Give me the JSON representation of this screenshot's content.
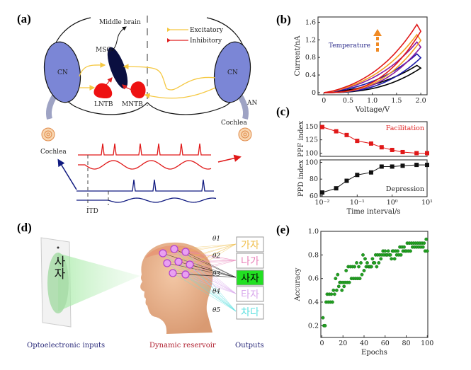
{
  "panels": {
    "a": {
      "label": "(a)",
      "middle_brain": "Middle brain",
      "legend": [
        {
          "label": "Excitatory",
          "color": "#f5c842"
        },
        {
          "label": "Inhibitory",
          "color": "#e02020"
        }
      ],
      "mso": "MSO",
      "cn_left": "CN",
      "cn_right": "CN",
      "lntb": "LNTB",
      "mntb": "MNTB",
      "an": "AN",
      "cochlea_left": "Cochlea",
      "cochlea_right": "Cochlea",
      "itd": "ITD",
      "colors": {
        "cn": "#7b86d6",
        "mso": "#0a0f40",
        "ntb": "#ee1111",
        "an": "#9ea3c4",
        "red_trace": "#e01818",
        "blue_trace": "#101a80"
      }
    },
    "b": {
      "label": "(b)",
      "annotation": "Temperature",
      "annotation_color": "#2a2a8a",
      "arrow_color": "#f08a24"
    },
    "c": {
      "label": "(c)"
    },
    "d": {
      "label": "(d)",
      "input_char": "사자",
      "thetas": [
        "θ1",
        "θ2",
        "θ3",
        "θ4",
        "θ5"
      ],
      "outputs": [
        {
          "text": "가자",
          "color": "#f0c050",
          "bg": "#ffffff"
        },
        {
          "text": "나가",
          "color": "#e880b8",
          "bg": "#ffffff"
        },
        {
          "text": "사자",
          "color": "#000000",
          "bg": "#22e022"
        },
        {
          "text": "타자",
          "color": "#d8a8ec",
          "bg": "#ffffff"
        },
        {
          "text": "차다",
          "color": "#60e0e0",
          "bg": "#ffffff"
        }
      ],
      "caption_inputs": "Optoelectronic inputs",
      "caption_reservoir": "Dynamic reservoir",
      "caption_outputs": "Outputs",
      "caption_colors": {
        "inputs": "#2a2a7a",
        "reservoir": "#b02030",
        "outputs": "#2a2a7a"
      }
    },
    "e": {
      "label": "(e)"
    }
  },
  "chart_data": [
    {
      "panel": "b",
      "type": "line",
      "xlabel": "Voltage/V",
      "ylabel": "Current/nA",
      "xlim": [
        -0.12,
        2.13
      ],
      "ylim": [
        -0.05,
        1.72
      ],
      "xticks": [
        0,
        0.5,
        1.0,
        1.5,
        2.0
      ],
      "xtick_labels": [
        "0",
        "0.5",
        "1.0",
        "1.5",
        "2.0"
      ],
      "yticks": [
        0,
        0.4,
        0.8,
        1.2,
        1.6
      ],
      "ytick_labels": [
        "0",
        "0.4",
        "0.8",
        "1.2",
        "1.6"
      ],
      "series": [
        {
          "color": "#000000",
          "peak_current": 0.62,
          "max_voltage": 2.0
        },
        {
          "color": "#1a1aa8",
          "peak_current": 0.88,
          "max_voltage": 2.0
        },
        {
          "color": "#8a1aa0",
          "peak_current": 1.15,
          "max_voltage": 2.0
        },
        {
          "color": "#f5a020",
          "peak_current": 1.32,
          "max_voltage": 2.0
        },
        {
          "color": "#e01818",
          "peak_current": 1.55,
          "max_voltage": 2.0
        }
      ]
    },
    {
      "panel": "c-top",
      "type": "line",
      "ylabel": "PPF index",
      "annotation": "Facilitation",
      "annotation_color": "#e02020",
      "color": "#e01818",
      "xscale": "log",
      "xlim": [
        0.0087,
        10
      ],
      "ylim": [
        94,
        159
      ],
      "yticks": [
        100,
        125,
        150
      ],
      "ytick_labels": [
        "100",
        "125",
        "150"
      ],
      "x": [
        0.01,
        0.025,
        0.05,
        0.1,
        0.25,
        0.5,
        1,
        2,
        5,
        10
      ],
      "y": [
        149,
        141,
        134,
        123,
        118,
        111,
        106,
        102,
        100,
        100
      ]
    },
    {
      "panel": "c-bottom",
      "type": "line",
      "ylabel": "PPD index",
      "xlabel": "Time interval/s",
      "annotation": "Depression",
      "annotation_color": "#222222",
      "color": "#111111",
      "xscale": "log",
      "xlim": [
        0.0087,
        10
      ],
      "ylim": [
        59,
        103
      ],
      "yticks": [
        60,
        80,
        100
      ],
      "ytick_labels": [
        "60",
        "80",
        "100"
      ],
      "xticks": [
        0.01,
        0.1,
        1,
        10
      ],
      "xtick_labels": [
        "10⁻²",
        "10⁻¹",
        "10⁰",
        "10¹"
      ],
      "x": [
        0.01,
        0.025,
        0.05,
        0.1,
        0.25,
        0.5,
        1,
        2,
        5,
        10
      ],
      "y": [
        64,
        69,
        78,
        85,
        88,
        95,
        95,
        96,
        97,
        97
      ]
    },
    {
      "panel": "e",
      "type": "scatter",
      "xlabel": "Epochs",
      "ylabel": "Accuracy",
      "color": "#22a022",
      "xlim": [
        -1,
        100.5
      ],
      "ylim": [
        0.1,
        1.0
      ],
      "xticks": [
        0,
        20,
        40,
        60,
        80,
        100
      ],
      "xtick_labels": [
        "0",
        "20",
        "40",
        "60",
        "80",
        "100"
      ],
      "yticks": [
        0.2,
        0.4,
        0.6,
        0.8,
        1.0
      ],
      "ytick_labels": [
        "0.2",
        "0.4",
        "0.6",
        "0.8",
        "1.0"
      ],
      "y": [
        0.267,
        0.2,
        0.2,
        0.4,
        0.467,
        0.4,
        0.467,
        0.4,
        0.467,
        0.4,
        0.5,
        0.467,
        0.6,
        0.5,
        0.633,
        0.533,
        0.567,
        0.567,
        0.5,
        0.567,
        0.533,
        0.567,
        0.667,
        0.567,
        0.7,
        0.567,
        0.7,
        0.6,
        0.7,
        0.6,
        0.7,
        0.6,
        0.733,
        0.6,
        0.7,
        0.6,
        0.733,
        0.633,
        0.8,
        0.667,
        0.767,
        0.7,
        0.733,
        0.7,
        0.7,
        0.7,
        0.7,
        0.767,
        0.733,
        0.733,
        0.8,
        0.7,
        0.8,
        0.733,
        0.8,
        0.767,
        0.8,
        0.833,
        0.8,
        0.833,
        0.8,
        0.8,
        0.833,
        0.8,
        0.8,
        0.767,
        0.833,
        0.833,
        0.767,
        0.833,
        0.8,
        0.833,
        0.8,
        0.867,
        0.8,
        0.867,
        0.833,
        0.867,
        0.833,
        0.833,
        0.9,
        0.833,
        0.9,
        0.833,
        0.9,
        0.867,
        0.9,
        0.867,
        0.9,
        0.867,
        0.9,
        0.867,
        0.9,
        0.867,
        0.9,
        0.867,
        0.9,
        0.833,
        0.933,
        0.833
      ]
    }
  ]
}
